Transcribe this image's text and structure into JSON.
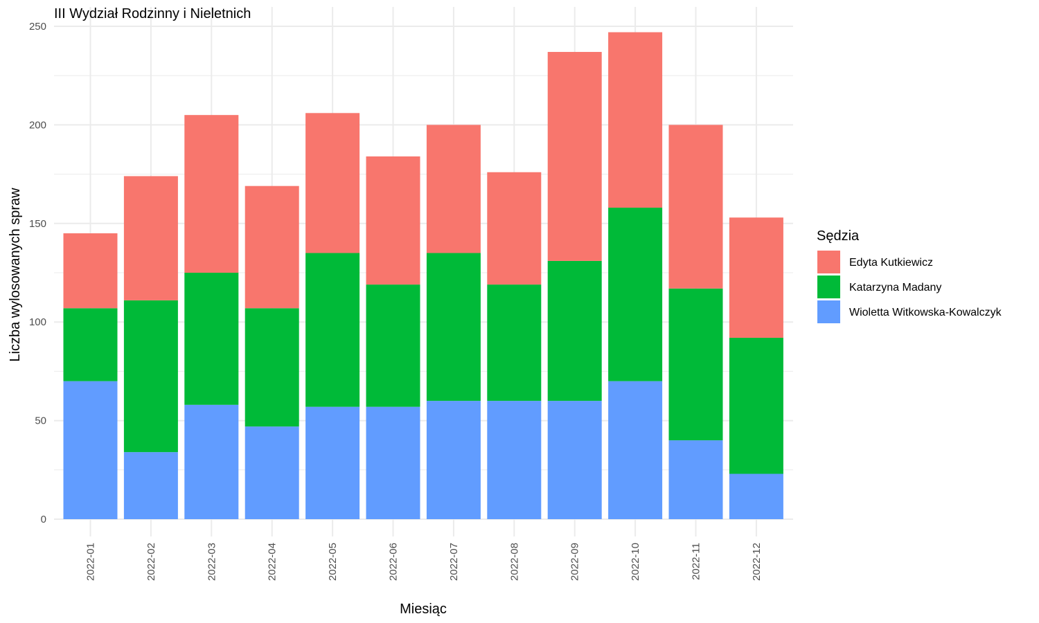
{
  "chart_data": {
    "type": "bar",
    "stacked": true,
    "title": "III Wydział Rodzinny i Nieletnich",
    "xlabel": "Miesiąc",
    "ylabel": "Liczba wylosowanych spraw",
    "ylim": [
      0,
      250
    ],
    "yticks": [
      0,
      50,
      100,
      150,
      200,
      250
    ],
    "grid": true,
    "legend_title": "Sędzia",
    "legend_position": "right",
    "categories": [
      "2022-01",
      "2022-02",
      "2022-03",
      "2022-04",
      "2022-05",
      "2022-06",
      "2022-07",
      "2022-08",
      "2022-09",
      "2022-10",
      "2022-11",
      "2022-12"
    ],
    "series": [
      {
        "name": "Wioletta Witkowska-Kowalczyk",
        "color": "#619CFF",
        "values": [
          70,
          34,
          58,
          47,
          57,
          57,
          60,
          60,
          60,
          70,
          40,
          23
        ]
      },
      {
        "name": "Katarzyna Madany",
        "color": "#00BA38",
        "values": [
          37,
          77,
          67,
          60,
          78,
          62,
          75,
          59,
          71,
          88,
          77,
          69
        ]
      },
      {
        "name": "Edyta Kutkiewicz",
        "color": "#F8766D",
        "values": [
          38,
          63,
          80,
          62,
          71,
          65,
          65,
          57,
          106,
          89,
          83,
          61
        ]
      }
    ],
    "legend_order": [
      "Edyta Kutkiewicz",
      "Katarzyna Madany",
      "Wioletta Witkowska-Kowalczyk"
    ]
  }
}
